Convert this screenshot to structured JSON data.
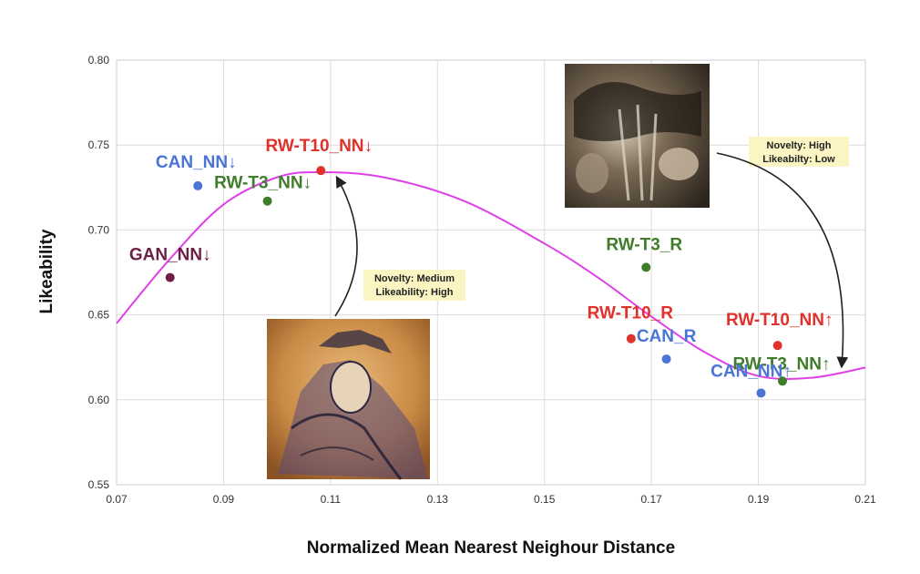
{
  "chart_data": {
    "type": "scatter",
    "xlabel": "Normalized Mean Nearest Neighour Distance",
    "ylabel": "Likeability",
    "xlim": [
      0.07,
      0.21
    ],
    "ylim": [
      0.55,
      0.8
    ],
    "xticks": [
      "0.07",
      "0.09",
      "0.11",
      "0.13",
      "0.15",
      "0.17",
      "0.19",
      "0.21"
    ],
    "yticks": [
      "0.55",
      "0.60",
      "0.65",
      "0.70",
      "0.75",
      "0.80"
    ],
    "grid": true,
    "points": [
      {
        "label": "CAN_NN↓",
        "x": 0.0852,
        "y": 0.726,
        "color": "#4a74d6"
      },
      {
        "label": "RW-T3_NN↓",
        "x": 0.0982,
        "y": 0.717,
        "color": "#3f7d2a"
      },
      {
        "label": "RW-T10_NN↓",
        "x": 0.1082,
        "y": 0.735,
        "color": "#e0312a"
      },
      {
        "label": "GAN_NN↓",
        "x": 0.08,
        "y": 0.672,
        "color": "#6d1f45"
      },
      {
        "label": "RW-T3_R",
        "x": 0.169,
        "y": 0.678,
        "color": "#3f7d2a"
      },
      {
        "label": "RW-T10_R",
        "x": 0.1662,
        "y": 0.636,
        "color": "#e0312a"
      },
      {
        "label": "CAN_R",
        "x": 0.1728,
        "y": 0.624,
        "color": "#4a74d6"
      },
      {
        "label": "RW-T10_NN↑",
        "x": 0.1936,
        "y": 0.632,
        "color": "#e0312a"
      },
      {
        "label": "RW-T3_NN↑",
        "x": 0.1945,
        "y": 0.611,
        "color": "#3f7d2a"
      },
      {
        "label": "CAN_NN↑",
        "x": 0.1905,
        "y": 0.604,
        "color": "#4a74d6"
      }
    ],
    "trend_curve": {
      "color": "#e040e8",
      "x": [
        0.07,
        0.08,
        0.09,
        0.1,
        0.108,
        0.12,
        0.135,
        0.15,
        0.16,
        0.17,
        0.18,
        0.19,
        0.2,
        0.21
      ],
      "y": [
        0.645,
        0.683,
        0.715,
        0.731,
        0.734,
        0.731,
        0.717,
        0.692,
        0.672,
        0.649,
        0.628,
        0.614,
        0.613,
        0.619
      ]
    },
    "callouts": [
      {
        "line1": "Novelty: Medium",
        "line2": "Likeability: High",
        "bg": "#fbf5c4"
      },
      {
        "line1": "Novelty: High",
        "line2": "Likeabilty: Low",
        "bg": "#fbf5c4"
      }
    ],
    "images": [
      {
        "name": "generated-portrait-image"
      },
      {
        "name": "generated-abstract-image"
      }
    ]
  }
}
